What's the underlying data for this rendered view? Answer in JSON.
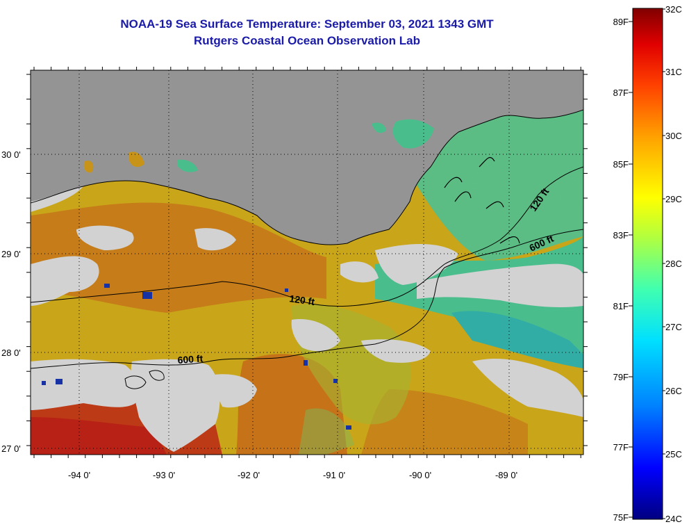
{
  "title_line1": "NOAA-19 Sea Surface Temperature:  September 03, 2021 1343 GMT",
  "title_line2": "Rutgers Coastal Ocean Observation Lab",
  "map": {
    "longitude_labels": [
      "-94 0'",
      "-93 0'",
      "-92 0'",
      "-91 0'",
      "-90 0'",
      "-89 0'"
    ],
    "latitude_labels": [
      "30 0'",
      "29 0'",
      "28 0'",
      "27 0'"
    ],
    "contour_labels": {
      "c120_west": "120 ft",
      "c600_west": "600 ft",
      "c120_east": "120 ft",
      "c600_east": "600 ft"
    },
    "colors": {
      "land": "#b4b4b4",
      "cloud": "#ffffff",
      "warm": "#f08a1e",
      "hot": "#e8321a",
      "mid": "#f5d21c",
      "cool": "#3ce6b4",
      "cold": "#1a3cc8"
    }
  },
  "colorbar": {
    "fahrenheit_labels": [
      "89F",
      "87F",
      "85F",
      "83F",
      "81F",
      "79F",
      "77F",
      "75F"
    ],
    "celsius_labels": [
      "32C",
      "31C",
      "30C",
      "29C",
      "28C",
      "27C",
      "26C",
      "25C",
      "24C"
    ],
    "range_c": [
      24,
      32
    ],
    "gradient_stops": [
      "#000080",
      "#0000ff",
      "#0080ff",
      "#00e0ff",
      "#40ffb0",
      "#b0ff40",
      "#ffff00",
      "#ffa000",
      "#ff4000",
      "#e00000",
      "#800000"
    ]
  }
}
